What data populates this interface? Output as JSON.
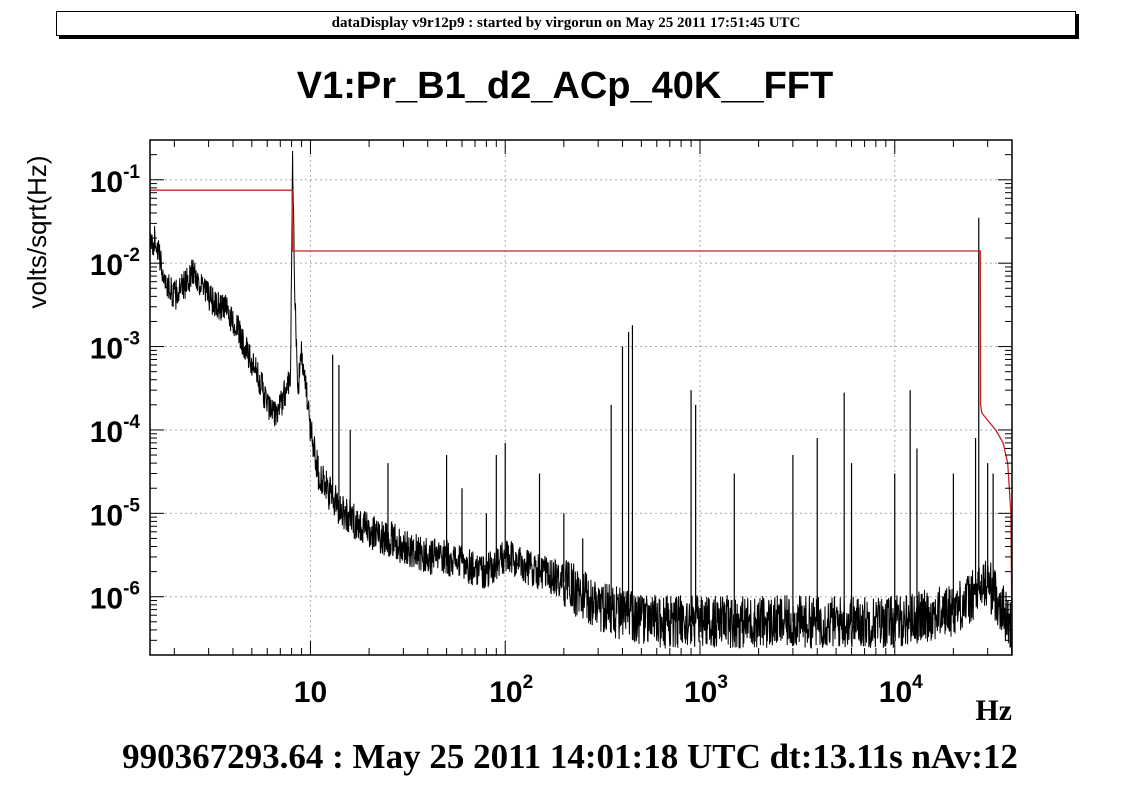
{
  "header": {
    "text": "dataDisplay v9r12p9 : started by virgorun on May 25 2011 17:51:45 UTC"
  },
  "colors": {
    "spectrum": "#000000",
    "reference": "#cc2222",
    "grid": "#aaaaaa",
    "background": "#ffffff",
    "header_border": "#000000"
  },
  "chart_data": {
    "type": "line",
    "title": "V1:Pr_B1_d2_ACp_40K__FFT",
    "xlabel": "Hz",
    "ylabel": "volts/sqrt(Hz)",
    "footer": "990367293.64 : May 25 2011 14:01:18 UTC dt:13.11s nAv:12",
    "x_scale": "log",
    "y_scale": "log",
    "xlim": [
      1.5,
      40000
    ],
    "ylim": [
      2e-07,
      0.3
    ],
    "grid": true,
    "x_ticks": [
      {
        "value": 10,
        "base": "10",
        "exp": ""
      },
      {
        "value": 100,
        "base": "10",
        "exp": "2"
      },
      {
        "value": 1000,
        "base": "10",
        "exp": "3"
      },
      {
        "value": 10000,
        "base": "10",
        "exp": "4"
      }
    ],
    "y_ticks": [
      {
        "value": 0.1,
        "base": "10",
        "exp": "-1"
      },
      {
        "value": 0.01,
        "base": "10",
        "exp": "-2"
      },
      {
        "value": 0.001,
        "base": "10",
        "exp": "-3"
      },
      {
        "value": 0.0001,
        "base": "10",
        "exp": "-4"
      },
      {
        "value": 1e-05,
        "base": "10",
        "exp": "-5"
      },
      {
        "value": 1e-06,
        "base": "10",
        "exp": "-6"
      }
    ],
    "series": [
      {
        "color": "#000000",
        "x": [
          1.5,
          1.6,
          1.7,
          1.8,
          2.0,
          2.2,
          2.5,
          2.8,
          3.0,
          3.3,
          3.6,
          4.0,
          4.3,
          4.6,
          5.0,
          5.5,
          6.0,
          6.5,
          7.0,
          7.5,
          7.9,
          8.1,
          8.3,
          8.6,
          9.0,
          9.5,
          10,
          10.5,
          11,
          12,
          13,
          14,
          15,
          17,
          20,
          25,
          30,
          40,
          50,
          60,
          70,
          80,
          100,
          120,
          150,
          200,
          250,
          300,
          400,
          600,
          1000,
          2000,
          5000,
          10000,
          15000,
          20000,
          25000,
          30000,
          35000,
          40000
        ],
        "y": [
          0.015,
          0.02,
          0.01,
          0.006,
          0.004,
          0.005,
          0.008,
          0.005,
          0.004,
          0.003,
          0.003,
          0.002,
          0.0015,
          0.001,
          0.0006,
          0.0004,
          0.0002,
          0.00015,
          0.0002,
          0.0003,
          0.0005,
          0.2,
          0.005,
          0.0003,
          0.0008,
          0.0003,
          0.0001,
          6e-05,
          3e-05,
          2e-05,
          1.5e-05,
          1.2e-05,
          1e-05,
          8e-06,
          6e-06,
          5e-06,
          4e-06,
          3e-06,
          3e-06,
          2.5e-06,
          2.2e-06,
          2e-06,
          3e-06,
          2.5e-06,
          2e-06,
          1.5e-06,
          1e-06,
          8e-07,
          6e-07,
          5e-07,
          5e-07,
          5e-07,
          5e-07,
          5e-07,
          6e-07,
          7e-07,
          1e-06,
          1.5e-06,
          8e-07,
          4e-07
        ]
      },
      {
        "color": "#cc2222",
        "x": [
          1.5,
          8.05,
          8.1,
          8.3,
          27500,
          27600,
          28000,
          30000,
          33000,
          36000,
          38000,
          39500,
          40000
        ],
        "y": [
          0.075,
          0.075,
          0.014,
          0.014,
          0.014,
          0.0002,
          0.00016,
          0.00013,
          0.0001,
          7e-05,
          4e-05,
          1e-05,
          3e-07
        ]
      }
    ],
    "peaks": [
      {
        "x": 8.1,
        "y": 0.2
      },
      {
        "x": 13,
        "y": 0.0008
      },
      {
        "x": 14,
        "y": 0.0006
      },
      {
        "x": 16,
        "y": 0.0001
      },
      {
        "x": 25,
        "y": 4e-05
      },
      {
        "x": 50,
        "y": 5e-05
      },
      {
        "x": 60,
        "y": 2e-05
      },
      {
        "x": 80,
        "y": 1e-05
      },
      {
        "x": 90,
        "y": 5e-05
      },
      {
        "x": 100,
        "y": 7e-05
      },
      {
        "x": 150,
        "y": 3e-05
      },
      {
        "x": 200,
        "y": 1e-05
      },
      {
        "x": 250,
        "y": 5e-06
      },
      {
        "x": 350,
        "y": 0.0002
      },
      {
        "x": 400,
        "y": 0.001
      },
      {
        "x": 430,
        "y": 0.0015
      },
      {
        "x": 450,
        "y": 0.0018
      },
      {
        "x": 900,
        "y": 0.0003
      },
      {
        "x": 950,
        "y": 0.0002
      },
      {
        "x": 1500,
        "y": 3e-05
      },
      {
        "x": 3000,
        "y": 5e-05
      },
      {
        "x": 4000,
        "y": 8e-05
      },
      {
        "x": 5500,
        "y": 0.00028
      },
      {
        "x": 6000,
        "y": 4e-05
      },
      {
        "x": 10000,
        "y": 3e-05
      },
      {
        "x": 12000,
        "y": 0.0003
      },
      {
        "x": 13000,
        "y": 6e-05
      },
      {
        "x": 20000,
        "y": 3e-05
      },
      {
        "x": 26000,
        "y": 8e-05
      },
      {
        "x": 27000,
        "y": 0.035
      },
      {
        "x": 30000,
        "y": 4e-05
      },
      {
        "x": 32000,
        "y": 3e-05
      }
    ]
  }
}
